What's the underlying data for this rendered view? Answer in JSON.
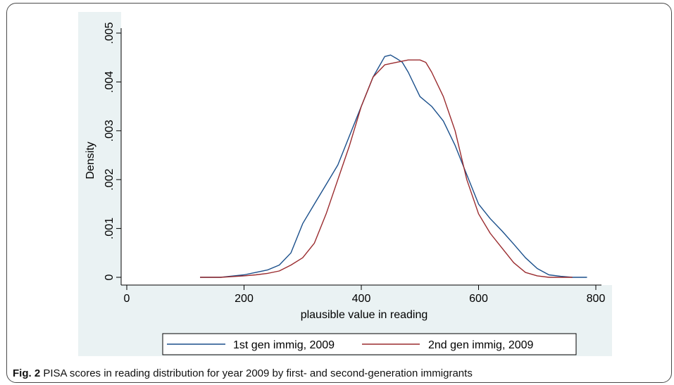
{
  "caption": {
    "label": "Fig. 2",
    "text": "PISA scores in reading distribution for year 2009 by first- and second-generation immigrants"
  },
  "colors": {
    "plot_bg": "#eaf2f3",
    "series1": "#1a4f8b",
    "series2": "#9a2b2e"
  },
  "chart_data": {
    "type": "line",
    "title": "",
    "xlabel": "plausible value in reading",
    "ylabel": "Density",
    "xlim": [
      0,
      800
    ],
    "ylim": [
      0,
      0.005
    ],
    "xticks": [
      0,
      200,
      400,
      600,
      800
    ],
    "xtick_labels": [
      "0",
      "200",
      "400",
      "600",
      "800"
    ],
    "yticks": [
      0,
      0.001,
      0.002,
      0.003,
      0.004,
      0.005
    ],
    "ytick_labels": [
      "0",
      ".001",
      ".002",
      ".003",
      ".004",
      ".005"
    ],
    "grid": false,
    "legend": "bottom",
    "series": [
      {
        "name": "1st gen immig, 2009",
        "color": "#1a4f8b",
        "x": [
          125,
          160,
          200,
          220,
          240,
          260,
          280,
          300,
          320,
          340,
          360,
          380,
          400,
          420,
          440,
          450,
          460,
          470,
          480,
          500,
          520,
          540,
          560,
          580,
          600,
          620,
          640,
          660,
          680,
          700,
          720,
          740,
          760,
          785
        ],
        "y": [
          0.0,
          0.0,
          5e-05,
          0.0001,
          0.00015,
          0.00025,
          0.0005,
          0.0011,
          0.0015,
          0.0019,
          0.0023,
          0.0029,
          0.0035,
          0.0041,
          0.00452,
          0.00455,
          0.00448,
          0.0044,
          0.0042,
          0.0037,
          0.0035,
          0.0032,
          0.0027,
          0.0021,
          0.0015,
          0.0012,
          0.00095,
          0.00068,
          0.0004,
          0.00018,
          5e-05,
          2e-05,
          0.0,
          0.0
        ]
      },
      {
        "name": "2nd gen immig, 2009",
        "color": "#9a2b2e",
        "x": [
          125,
          160,
          200,
          220,
          240,
          260,
          280,
          300,
          320,
          340,
          360,
          380,
          400,
          420,
          440,
          460,
          480,
          500,
          510,
          520,
          540,
          560,
          580,
          600,
          620,
          640,
          660,
          680,
          700,
          720,
          740,
          760
        ],
        "y": [
          0.0,
          0.0,
          3e-05,
          5e-05,
          8e-05,
          0.00013,
          0.00025,
          0.0004,
          0.0007,
          0.0013,
          0.002,
          0.0027,
          0.0035,
          0.0041,
          0.00435,
          0.0044,
          0.00445,
          0.00445,
          0.0044,
          0.0042,
          0.0037,
          0.003,
          0.002,
          0.0013,
          0.0009,
          0.0006,
          0.0003,
          0.0001,
          3e-05,
          0.0,
          0.0,
          0.0
        ]
      }
    ]
  }
}
